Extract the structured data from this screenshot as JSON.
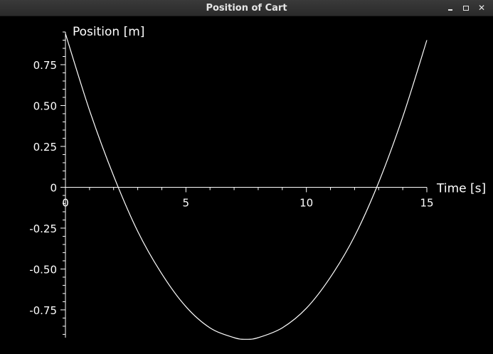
{
  "window": {
    "title": "Position of Cart"
  },
  "chart_data": {
    "type": "line",
    "title": "",
    "xlabel": "Time [s]",
    "ylabel": "Position [m]",
    "xlim": [
      0,
      15
    ],
    "ylim": [
      -0.92,
      0.95
    ],
    "xticks": [
      0,
      5,
      10,
      15
    ],
    "xtick_labels": [
      "0",
      "5",
      "10",
      "15"
    ],
    "yticks": [
      0.75,
      0.5,
      0.25,
      0,
      -0.25,
      -0.5,
      -0.75
    ],
    "ytick_labels": [
      "0.75",
      "0.50",
      "0.25",
      "0",
      "-0.25",
      "-0.50",
      "-0.75"
    ],
    "grid": false,
    "legend": "none",
    "background": "#000000",
    "line_color": "#ffffff",
    "series": [
      {
        "x": [
          0,
          1,
          2,
          3,
          4,
          5,
          6,
          7,
          7.5,
          8,
          9,
          10,
          11,
          12,
          13,
          14,
          15
        ],
        "y": [
          0.94,
          0.47,
          0.07,
          -0.27,
          -0.53,
          -0.73,
          -0.86,
          -0.92,
          -0.93,
          -0.92,
          -0.86,
          -0.74,
          -0.55,
          -0.3,
          0.03,
          0.43,
          0.9
        ]
      }
    ]
  }
}
